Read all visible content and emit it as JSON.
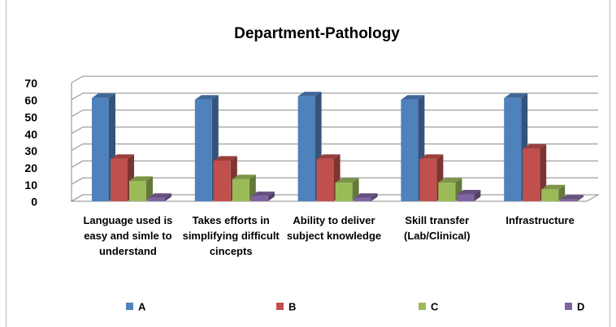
{
  "chart_data": {
    "type": "bar3d",
    "title": "Department-Pathology",
    "categories": [
      "Language used is easy and simle to understand",
      "Takes efforts in simplifying difficult cincepts",
      "Ability to deliver subject knowledge",
      "Skill transfer (Lab/Clinical)",
      "Infrastructure"
    ],
    "series": [
      {
        "name": "A",
        "color": "#4f81bd",
        "values": [
          61,
          60,
          62,
          60,
          61
        ]
      },
      {
        "name": "B",
        "color": "#c0504d",
        "values": [
          25,
          24,
          25,
          25,
          31
        ]
      },
      {
        "name": "C",
        "color": "#9bbb59",
        "values": [
          12,
          13,
          11,
          11,
          7
        ]
      },
      {
        "name": "D",
        "color": "#8064a2",
        "values": [
          2,
          3,
          2,
          4,
          1
        ]
      }
    ],
    "ylim": [
      0,
      70
    ],
    "yticks": [
      0,
      10,
      20,
      30,
      40,
      50,
      60,
      70
    ],
    "grid": true,
    "legend": "bottom"
  }
}
